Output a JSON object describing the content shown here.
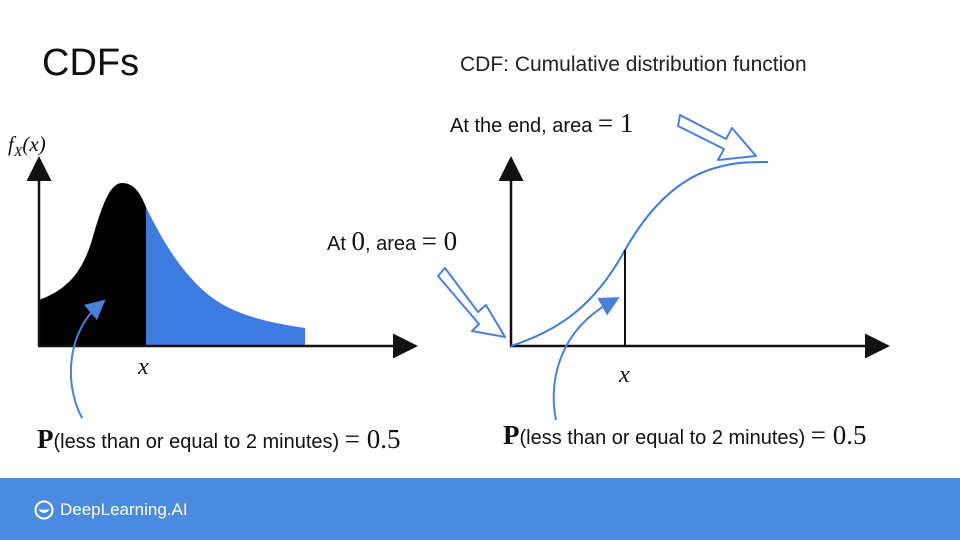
{
  "title": "CDFs",
  "subtitle": "CDF: Cumulative distribution function",
  "left_plot": {
    "ylabel_f": "f",
    "ylabel_sub": "X",
    "ylabel_arg": "(x)",
    "xlabel": "x",
    "prob_P": "P",
    "prob_text": "(less than or equal to 2 minutes)",
    "prob_eq": "= 0.5",
    "colors": {
      "shaded_left": "#000000",
      "shaded_right": "#3d7be0",
      "arrow": "#4a7fdc"
    }
  },
  "right_plot": {
    "end_note": "At the end, area",
    "end_value": "= 1",
    "start_note_prefix": "At",
    "start_note_zero": "0",
    "start_note_suffix": ", area",
    "start_value": "= 0",
    "xlabel": "x",
    "prob_P": "P",
    "prob_text": "(less than or equal to 2 minutes)",
    "prob_eq": "= 0.5",
    "colors": {
      "curve": "#3d7be0",
      "arrow_outline": "#4a7fdc"
    }
  },
  "footer": {
    "brand": "DeepLearning.AI",
    "background": "#4a8be0",
    "icon": "deeplearning-logo-icon"
  }
}
